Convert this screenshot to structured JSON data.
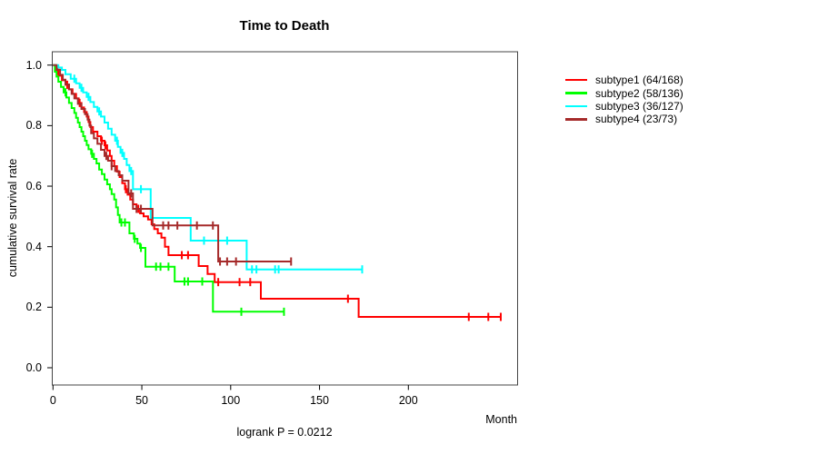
{
  "title": "Time to Death",
  "annotation": "logrank P = 0.0212",
  "chart_data": {
    "type": "line",
    "subtype": "kaplan-meier-step-curves",
    "title": "Time to Death",
    "xlabel": "Month",
    "ylabel": "cumulative survival rate",
    "xlim": [
      0,
      250
    ],
    "ylim": [
      0,
      1
    ],
    "grid": false,
    "legend_position": "right-outside",
    "x_ticks": [
      0,
      50,
      100,
      150,
      200
    ],
    "x_tick_labels": [
      "0",
      "50",
      "100",
      "150",
      "200"
    ],
    "y_ticks": [
      0.0,
      0.2,
      0.4,
      0.6,
      0.8,
      1.0
    ],
    "y_tick_labels": [
      "0.0",
      "0.2",
      "0.4",
      "0.6",
      "0.8",
      "1.0"
    ],
    "series": [
      {
        "name": "subtype1 (64/168)",
        "group": "subtype1",
        "events": 64,
        "n": 168,
        "color": "#ff0000",
        "steps": [
          [
            1.5,
            0.982
          ],
          [
            3,
            0.965
          ],
          [
            5,
            0.95
          ],
          [
            7,
            0.935
          ],
          [
            9,
            0.92
          ],
          [
            11,
            0.905
          ],
          [
            13,
            0.89
          ],
          [
            14.5,
            0.875
          ],
          [
            16,
            0.86
          ],
          [
            17.5,
            0.845
          ],
          [
            19,
            0.83
          ],
          [
            20,
            0.812
          ],
          [
            21,
            0.795
          ],
          [
            22.5,
            0.78
          ],
          [
            25,
            0.765
          ],
          [
            27,
            0.75
          ],
          [
            29,
            0.735
          ],
          [
            30.5,
            0.718
          ],
          [
            32,
            0.7
          ],
          [
            33,
            0.684
          ],
          [
            34.5,
            0.666
          ],
          [
            36,
            0.648
          ],
          [
            37.5,
            0.63
          ],
          [
            39,
            0.61
          ],
          [
            40.5,
            0.59
          ],
          [
            42,
            0.572
          ],
          [
            43.5,
            0.556
          ],
          [
            45,
            0.54
          ],
          [
            47,
            0.525
          ],
          [
            49,
            0.51
          ],
          [
            51,
            0.5
          ],
          [
            53.5,
            0.49
          ],
          [
            55.5,
            0.474
          ],
          [
            57,
            0.458
          ],
          [
            59,
            0.444
          ],
          [
            61,
            0.43
          ],
          [
            63,
            0.4
          ],
          [
            65,
            0.372
          ],
          [
            82,
            0.336
          ],
          [
            87,
            0.31
          ],
          [
            91,
            0.283
          ],
          [
            117,
            0.228
          ],
          [
            172,
            0.168
          ]
        ],
        "end_time": 252,
        "censor_times": [
          2.5,
          8,
          15,
          27.5,
          29.5,
          41,
          48,
          72.5,
          76,
          93,
          105,
          111,
          166,
          234,
          245,
          252
        ]
      },
      {
        "name": "subtype2 (58/136)",
        "group": "subtype2",
        "events": 58,
        "n": 136,
        "color": "#00ff00",
        "steps": [
          [
            1,
            0.978
          ],
          [
            2,
            0.962
          ],
          [
            3,
            0.945
          ],
          [
            4.5,
            0.928
          ],
          [
            6,
            0.91
          ],
          [
            7.5,
            0.893
          ],
          [
            9,
            0.875
          ],
          [
            10.5,
            0.858
          ],
          [
            12,
            0.842
          ],
          [
            13,
            0.826
          ],
          [
            14,
            0.81
          ],
          [
            15,
            0.795
          ],
          [
            16,
            0.78
          ],
          [
            17,
            0.765
          ],
          [
            18,
            0.75
          ],
          [
            19,
            0.736
          ],
          [
            20,
            0.722
          ],
          [
            21.5,
            0.707
          ],
          [
            23,
            0.69
          ],
          [
            24.5,
            0.675
          ],
          [
            26,
            0.655
          ],
          [
            27.5,
            0.64
          ],
          [
            29,
            0.622
          ],
          [
            30.5,
            0.606
          ],
          [
            32,
            0.59
          ],
          [
            33,
            0.574
          ],
          [
            34.5,
            0.556
          ],
          [
            35.5,
            0.53
          ],
          [
            36.5,
            0.505
          ],
          [
            37.5,
            0.48
          ],
          [
            43,
            0.444
          ],
          [
            45.5,
            0.426
          ],
          [
            47.5,
            0.41
          ],
          [
            49,
            0.396
          ],
          [
            52,
            0.334
          ],
          [
            68.5,
            0.285
          ],
          [
            90,
            0.185
          ]
        ],
        "end_time": 130,
        "censor_times": [
          7,
          22,
          38.5,
          40.5,
          46,
          49.5,
          58,
          60.5,
          65,
          74,
          76,
          84,
          106,
          130
        ]
      },
      {
        "name": "subtype3 (36/127)",
        "group": "subtype3",
        "events": 36,
        "n": 127,
        "color": "#00ffff",
        "steps": [
          [
            3,
            0.992
          ],
          [
            5,
            0.984
          ],
          [
            7,
            0.97
          ],
          [
            10,
            0.955
          ],
          [
            13,
            0.94
          ],
          [
            15,
            0.925
          ],
          [
            17,
            0.91
          ],
          [
            19,
            0.895
          ],
          [
            21,
            0.878
          ],
          [
            23,
            0.862
          ],
          [
            25,
            0.847
          ],
          [
            27,
            0.83
          ],
          [
            29,
            0.81
          ],
          [
            31,
            0.79
          ],
          [
            33,
            0.77
          ],
          [
            35,
            0.75
          ],
          [
            36.5,
            0.73
          ],
          [
            38,
            0.71
          ],
          [
            40,
            0.69
          ],
          [
            41.5,
            0.67
          ],
          [
            43,
            0.65
          ],
          [
            45,
            0.59
          ],
          [
            55,
            0.495
          ],
          [
            77.5,
            0.42
          ],
          [
            109,
            0.325
          ]
        ],
        "end_time": 174,
        "censor_times": [
          12,
          16,
          20,
          26,
          36,
          39,
          44,
          49.5,
          85,
          98,
          112,
          114.5,
          125,
          127,
          174
        ]
      },
      {
        "name": "subtype4 (23/73)",
        "group": "subtype4",
        "events": 23,
        "n": 73,
        "color": "#a52a2a",
        "steps": [
          [
            2,
            0.985
          ],
          [
            4,
            0.968
          ],
          [
            5.5,
            0.952
          ],
          [
            7,
            0.936
          ],
          [
            9,
            0.92
          ],
          [
            10.5,
            0.905
          ],
          [
            12,
            0.89
          ],
          [
            14,
            0.872
          ],
          [
            16,
            0.855
          ],
          [
            18,
            0.838
          ],
          [
            19.5,
            0.82
          ],
          [
            20.5,
            0.8
          ],
          [
            21.5,
            0.775
          ],
          [
            23,
            0.758
          ],
          [
            25,
            0.74
          ],
          [
            27,
            0.72
          ],
          [
            29,
            0.7
          ],
          [
            31,
            0.684
          ],
          [
            33,
            0.666
          ],
          [
            35,
            0.65
          ],
          [
            37,
            0.636
          ],
          [
            39,
            0.618
          ],
          [
            42.5,
            0.576
          ],
          [
            45,
            0.525
          ],
          [
            56,
            0.47
          ],
          [
            93,
            0.351
          ]
        ],
        "end_time": 134,
        "censor_times": [
          30,
          33,
          44,
          47,
          49.5,
          62,
          65,
          70,
          81,
          90,
          94,
          98,
          103,
          134
        ]
      }
    ],
    "statistics": {
      "logrank_p": "0.0212"
    }
  }
}
